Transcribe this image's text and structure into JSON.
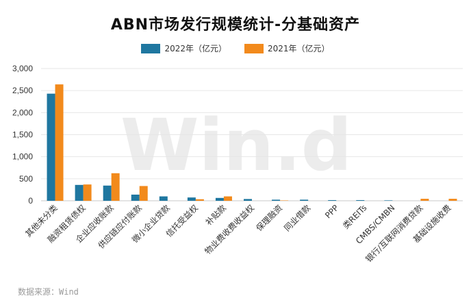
{
  "chart_data": {
    "type": "bar",
    "title": "ABN市场发行规模统计-分基础资产",
    "categories": [
      "其他未分类",
      "融资租赁债权",
      "企业应收账款",
      "供应链应付账款",
      "微小企业贷款",
      "信托受益权",
      "补贴款",
      "物业费收费收益权",
      "保理融资",
      "同业借款",
      "PPP",
      "类REITs",
      "CMBS/CMBN",
      "银行/互联网消费贷款",
      "基础设施收费"
    ],
    "series": [
      {
        "name": "2022年（亿元）",
        "color": "#1f77a0",
        "values": [
          2430,
          360,
          345,
          140,
          100,
          75,
          65,
          40,
          25,
          25,
          15,
          15,
          10,
          0,
          0
        ]
      },
      {
        "name": "2021年（亿元）",
        "color": "#f28a1c",
        "values": [
          2640,
          370,
          625,
          335,
          0,
          35,
          100,
          0,
          8,
          0,
          0,
          0,
          0,
          45,
          45
        ]
      }
    ],
    "ylim": [
      0,
      3000
    ],
    "yticks": [
      "3,000",
      "2,500",
      "2,000",
      "1,500",
      "1,000",
      "500",
      "0"
    ],
    "ytick_values": [
      3000,
      2500,
      2000,
      1500,
      1000,
      500,
      0
    ],
    "grid": true,
    "legend": "top-center"
  },
  "watermark": "Win.d",
  "source_text": "数据来源：Wind"
}
